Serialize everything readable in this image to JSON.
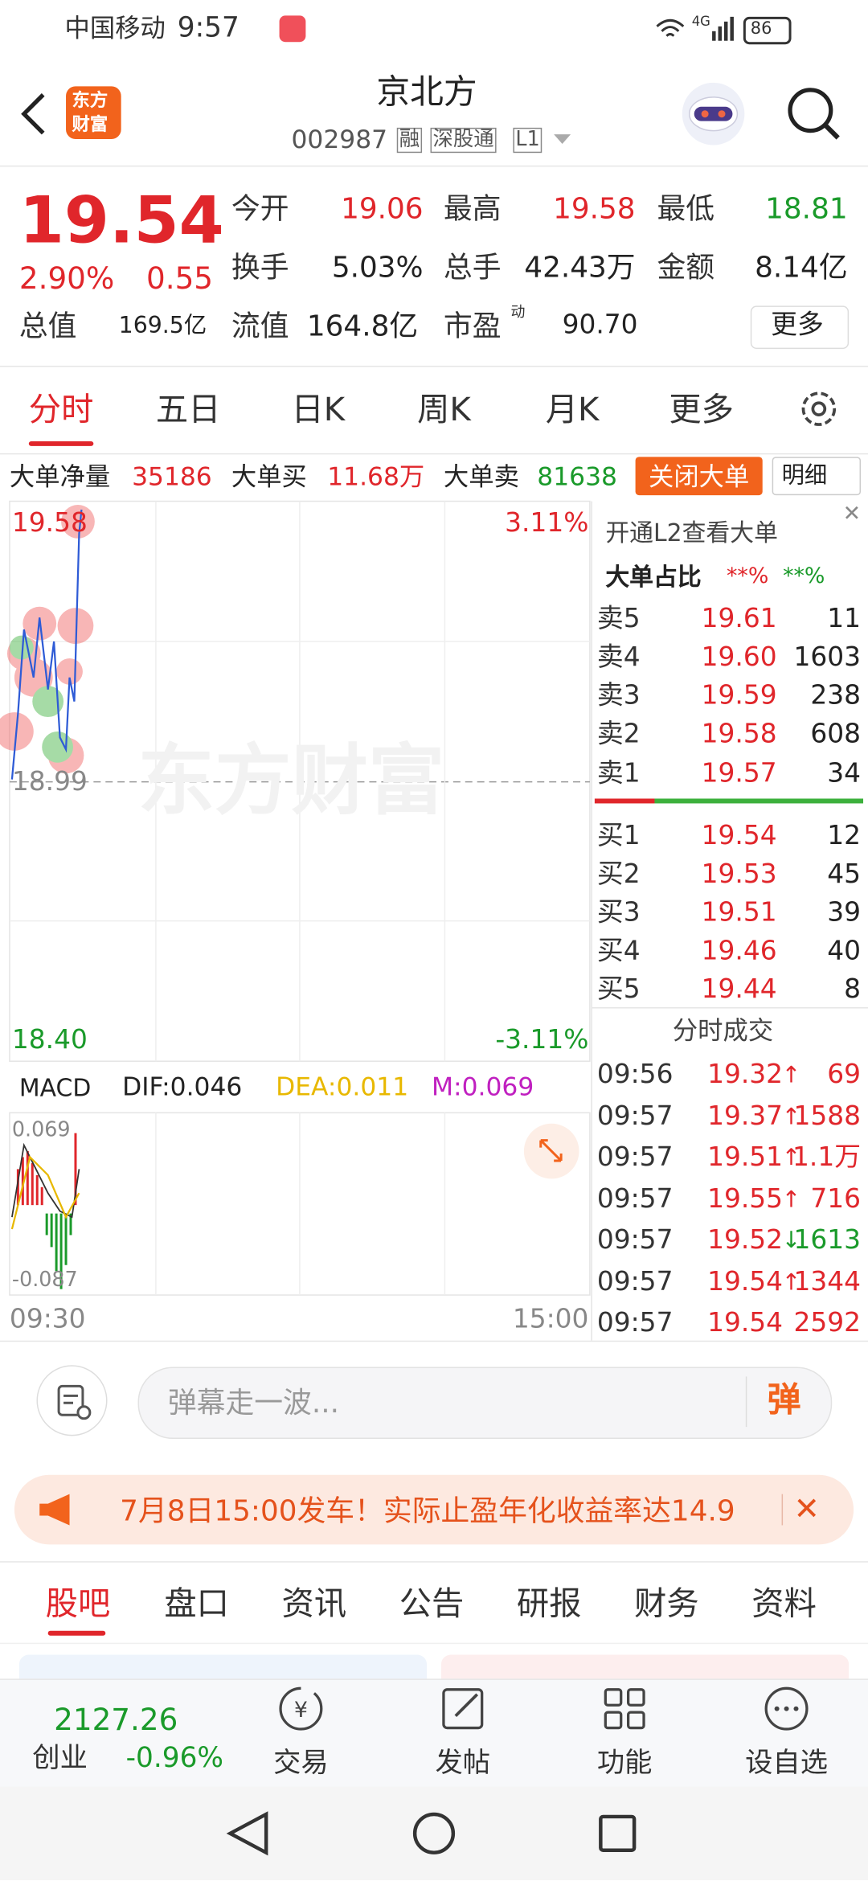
{
  "status_bar": {
    "carrier": "中国移动",
    "time": "9:57",
    "network": "4G",
    "battery": "86"
  },
  "header": {
    "logo": [
      "东方",
      "财富"
    ],
    "title": "京北方",
    "code": "002987",
    "tags": [
      "融",
      "深股通",
      "L1"
    ]
  },
  "quote": {
    "price": "19.54",
    "change_pct": "2.90%",
    "change": "0.55",
    "fields": [
      {
        "label": "今开",
        "value": "19.06"
      },
      {
        "label": "最高",
        "value": "19.58"
      },
      {
        "label": "最低",
        "value": "18.81"
      },
      {
        "label": "换手",
        "value": "5.03%"
      },
      {
        "label": "总手",
        "value": "42.43万"
      },
      {
        "label": "金额",
        "value": "8.14亿"
      },
      {
        "label": "总值",
        "value": "169.5亿"
      },
      {
        "label": "流值",
        "value": "164.8亿"
      },
      {
        "label": "市盈",
        "value": "90.70",
        "sup": "动"
      }
    ],
    "more": "更多"
  },
  "tabs": [
    "分时",
    "五日",
    "日K",
    "周K",
    "月K",
    "更多"
  ],
  "big_order": {
    "net_label": "大单净量",
    "net": "35186",
    "buy_label": "大单买",
    "buy": "11.68万",
    "sell_label": "大单卖",
    "sell": "81638",
    "close_button": "关闭大单",
    "detail_button": "明细"
  },
  "chart": {
    "watermark": "东方财富",
    "top_price": "19.58",
    "top_pct": "3.11%",
    "mid_price": "18.99",
    "bottom_price": "18.40",
    "bottom_pct": "-3.11%",
    "time_start": "09:30",
    "time_end": "15:00"
  },
  "macd": {
    "name": "MACD",
    "dif": "DIF:0.046",
    "dea": "DEA:0.011",
    "m": "M:0.069",
    "top": "0.069",
    "bottom": "-0.087"
  },
  "order_book": {
    "l2_link": "开通L2查看大单",
    "ratio_label": "大单占比",
    "ratio_buy": "**%",
    "ratio_sell": "**%",
    "asks": [
      [
        "卖5",
        "19.61",
        "11"
      ],
      [
        "卖4",
        "19.60",
        "1603"
      ],
      [
        "卖3",
        "19.59",
        "238"
      ],
      [
        "卖2",
        "19.58",
        "608"
      ],
      [
        "卖1",
        "19.57",
        "34"
      ]
    ],
    "bids": [
      [
        "买1",
        "19.54",
        "12"
      ],
      [
        "买2",
        "19.53",
        "45"
      ],
      [
        "买3",
        "19.51",
        "39"
      ],
      [
        "买4",
        "19.46",
        "40"
      ],
      [
        "买5",
        "19.44",
        "8"
      ]
    ]
  },
  "trades": {
    "title": "分时成交",
    "rows": [
      {
        "time": "09:56",
        "price": "19.32",
        "dir": "↑",
        "volume": "69"
      },
      {
        "time": "09:57",
        "price": "19.37",
        "dir": "↑",
        "volume": "1588"
      },
      {
        "time": "09:57",
        "price": "19.51",
        "dir": "↑",
        "volume": "1.1万"
      },
      {
        "time": "09:57",
        "price": "19.55",
        "dir": "↑",
        "volume": "716"
      },
      {
        "time": "09:57",
        "price": "19.52",
        "dir": "↓",
        "volume": "1613"
      },
      {
        "time": "09:57",
        "price": "19.54",
        "dir": "↑",
        "volume": "1344"
      },
      {
        "time": "09:57",
        "price": "19.54",
        "volume": "2592"
      }
    ]
  },
  "comment": {
    "placeholder": "弹幕走一波...",
    "button": "弹"
  },
  "banner": {
    "text": "7月8日15:00发车！实际止盈年化收益率达14.9"
  },
  "section_tabs": [
    "股吧",
    "盘口",
    "资讯",
    "公告",
    "研报",
    "财务",
    "资料"
  ],
  "bottom_nav": {
    "index_value": "2127.26",
    "index_name": "创业",
    "index_change": "-0.96%",
    "items": [
      "交易",
      "发帖",
      "功能",
      "设自选"
    ]
  }
}
